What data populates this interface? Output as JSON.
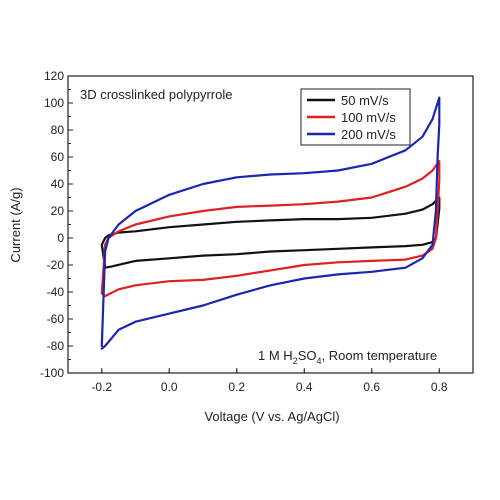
{
  "chart_data": {
    "type": "line",
    "title": "",
    "xlabel": "Voltage (V vs. Ag/AgCl)",
    "ylabel": "Current (A/g)",
    "xlim": [
      -0.3,
      0.9
    ],
    "ylim": [
      -100,
      120
    ],
    "x_ticks": [
      -0.2,
      0.0,
      0.2,
      0.4,
      0.6,
      0.8
    ],
    "x_tick_labels": [
      "-0.2",
      "0.0",
      "0.2",
      "0.4",
      "0.6",
      "0.8"
    ],
    "y_ticks": [
      -100,
      -80,
      -60,
      -40,
      -20,
      0,
      20,
      40,
      60,
      80,
      100,
      120
    ],
    "y_tick_labels": [
      "-100",
      "-80",
      "-60",
      "-40",
      "-20",
      "0",
      "20",
      "40",
      "60",
      "80",
      "100",
      "120"
    ],
    "grid": false,
    "legend_position": "top-right",
    "annotations": {
      "top_left": "3D crosslinked polypyrrole",
      "bottom_right": {
        "prefix": "1 M H",
        "sub1": "2",
        "mid": "SO",
        "sub2": "4",
        "suffix": ", Room temperature"
      }
    },
    "series": [
      {
        "name": "50 mV/s",
        "color": "#111111",
        "x": [
          -0.2,
          -0.19,
          -0.18,
          -0.15,
          -0.1,
          0.0,
          0.1,
          0.2,
          0.3,
          0.4,
          0.5,
          0.6,
          0.7,
          0.75,
          0.78,
          0.8,
          0.8,
          0.795,
          0.79,
          0.78,
          0.75,
          0.7,
          0.6,
          0.5,
          0.4,
          0.3,
          0.2,
          0.1,
          0.0,
          -0.1,
          -0.17,
          -0.19,
          -0.2
        ],
        "y": [
          -5,
          0,
          2,
          4,
          5,
          8,
          10,
          12,
          13,
          14,
          14,
          15,
          18,
          21,
          25,
          30,
          22,
          10,
          0,
          -3,
          -5,
          -6,
          -7,
          -8,
          -9,
          -10,
          -12,
          -13,
          -15,
          -17,
          -21,
          -22,
          -5
        ]
      },
      {
        "name": "100 mV/s",
        "color": "#e02020",
        "x": [
          -0.2,
          -0.19,
          -0.18,
          -0.15,
          -0.1,
          0.0,
          0.1,
          0.2,
          0.3,
          0.4,
          0.5,
          0.6,
          0.7,
          0.75,
          0.78,
          0.8,
          0.8,
          0.795,
          0.79,
          0.78,
          0.75,
          0.7,
          0.6,
          0.5,
          0.4,
          0.3,
          0.2,
          0.1,
          0.0,
          -0.1,
          -0.15,
          -0.19,
          -0.2
        ],
        "y": [
          -41,
          -5,
          0,
          5,
          10,
          16,
          20,
          23,
          24,
          25,
          27,
          30,
          38,
          44,
          50,
          57,
          43,
          20,
          0,
          -8,
          -13,
          -16,
          -17,
          -18,
          -20,
          -24,
          -28,
          -31,
          -32,
          -35,
          -38,
          -43,
          -41
        ]
      },
      {
        "name": "200 mV/s",
        "color": "#1a26b0",
        "x": [
          -0.2,
          -0.19,
          -0.18,
          -0.15,
          -0.1,
          0.0,
          0.1,
          0.2,
          0.3,
          0.4,
          0.5,
          0.6,
          0.7,
          0.75,
          0.78,
          0.8,
          0.8,
          0.795,
          0.79,
          0.78,
          0.75,
          0.7,
          0.6,
          0.5,
          0.4,
          0.3,
          0.2,
          0.1,
          0.0,
          -0.1,
          -0.15,
          -0.19,
          -0.2
        ],
        "y": [
          -80,
          -10,
          0,
          10,
          20,
          32,
          40,
          45,
          47,
          48,
          50,
          55,
          65,
          75,
          88,
          104,
          84,
          60,
          20,
          -5,
          -15,
          -22,
          -25,
          -27,
          -30,
          -35,
          -42,
          -50,
          -56,
          -62,
          -68,
          -80,
          -82
        ]
      }
    ]
  }
}
